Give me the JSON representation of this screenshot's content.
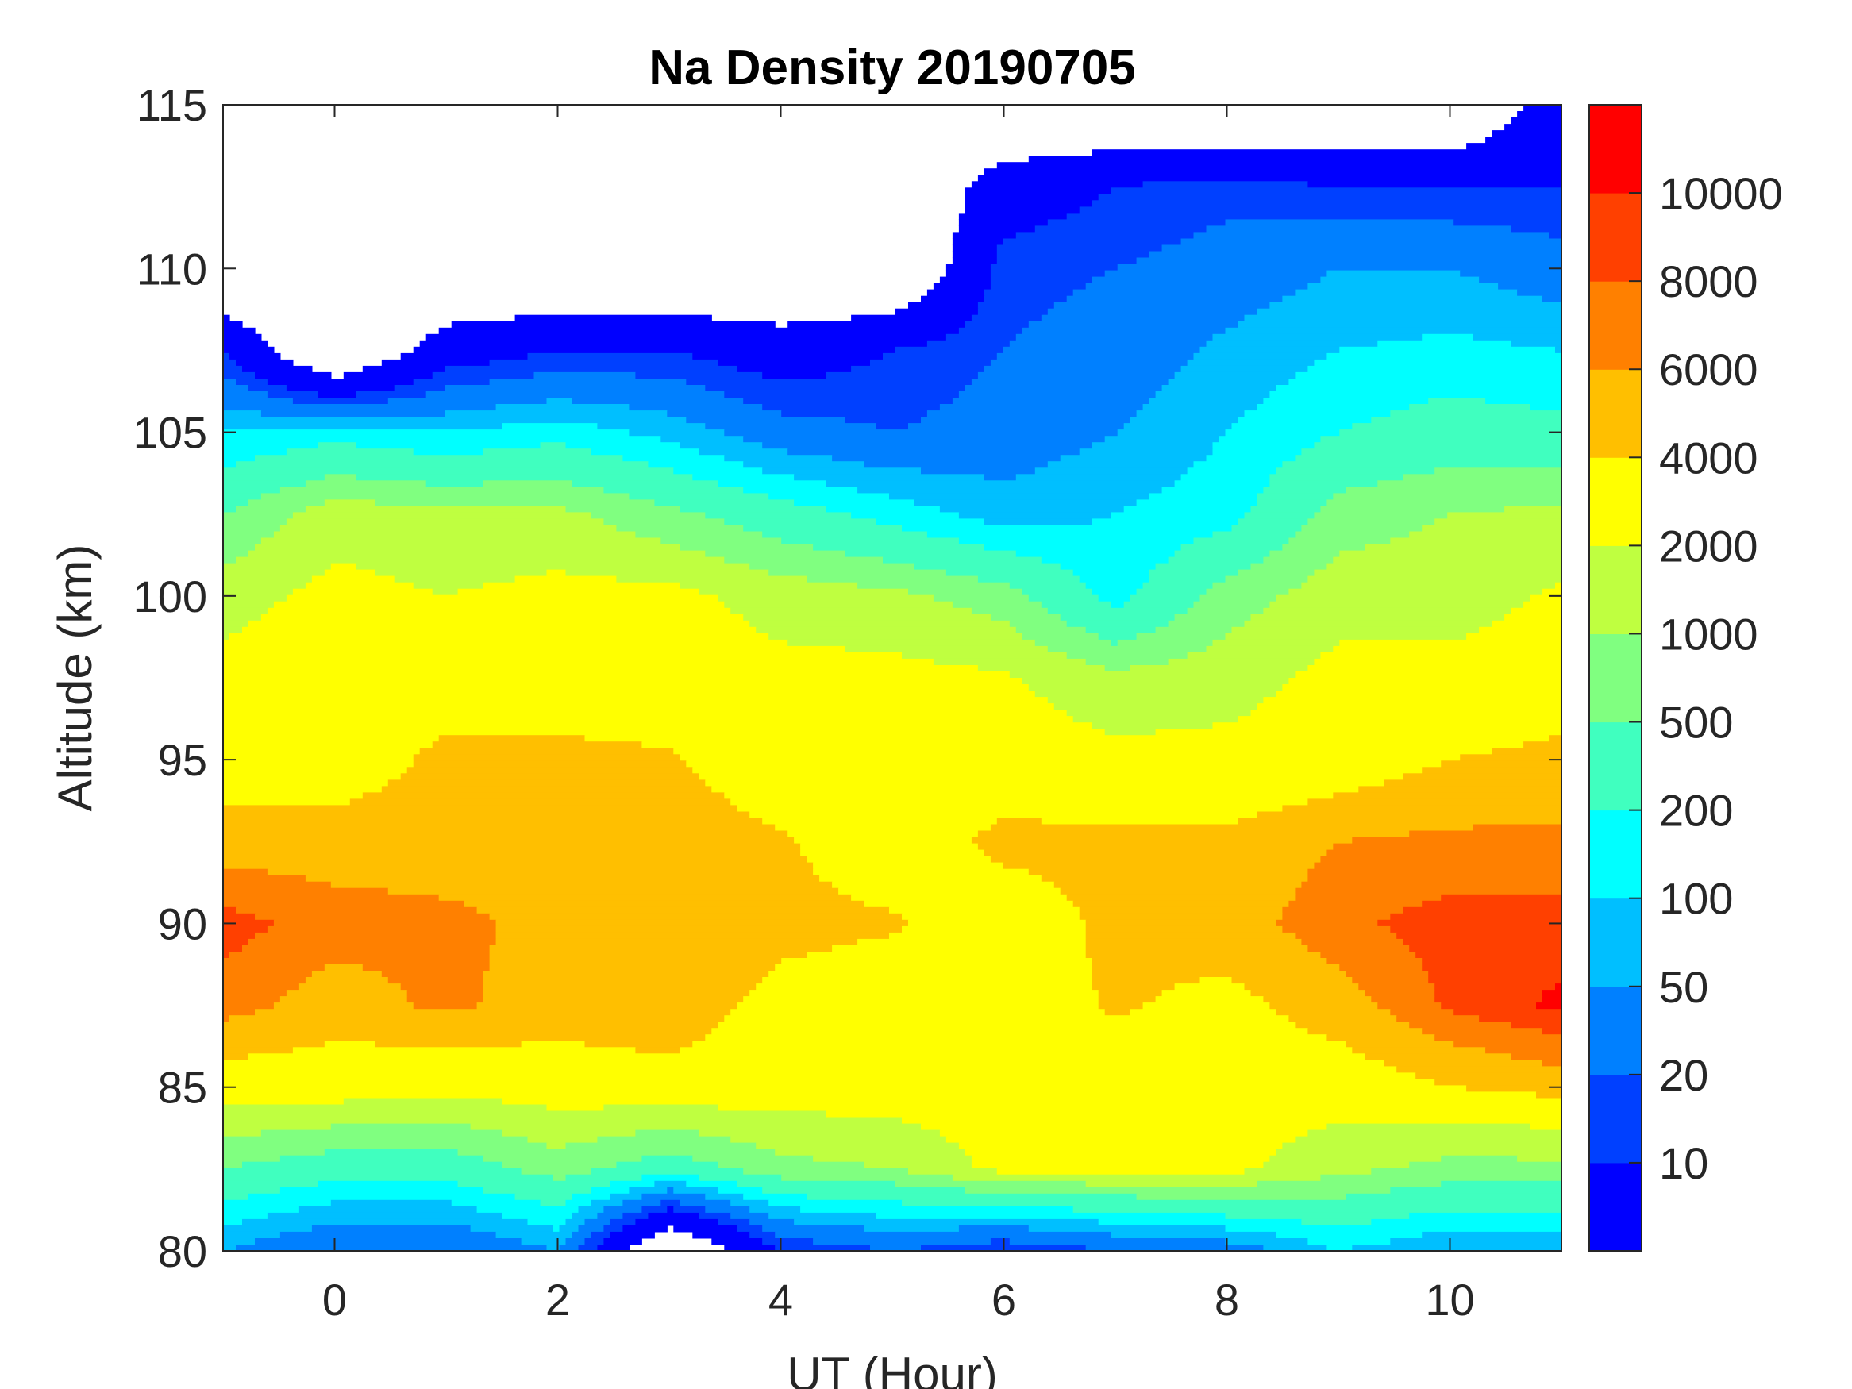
{
  "chart_data": {
    "type": "heatmap",
    "subtype": "filled-contour",
    "title": "Na Density 20190705",
    "xlabel": "UT (Hour)",
    "ylabel": "Altitude (km)",
    "xlim": [
      -1,
      11
    ],
    "ylim": [
      80,
      115
    ],
    "xticks": [
      "0",
      "2",
      "4",
      "6",
      "8",
      "10"
    ],
    "xtick_values": [
      0,
      2,
      4,
      6,
      8,
      10
    ],
    "yticks": [
      "80",
      "85",
      "90",
      "95",
      "100",
      "105",
      "110",
      "115"
    ],
    "ytick_values": [
      80,
      85,
      90,
      95,
      100,
      105,
      110,
      115
    ],
    "colorbar": {
      "levels": [
        10,
        20,
        50,
        100,
        200,
        500,
        1000,
        2000,
        4000,
        6000,
        8000,
        10000
      ],
      "labels": [
        "10",
        "20",
        "50",
        "100",
        "200",
        "500",
        "1000",
        "2000",
        "4000",
        "6000",
        "8000",
        "10000"
      ],
      "colors": [
        "#0000FF",
        "#0040FF",
        "#0080FF",
        "#00BFFF",
        "#00FFFF",
        "#40FFBF",
        "#80FF80",
        "#BFFF40",
        "#FFFF00",
        "#FFBF00",
        "#FF8000",
        "#FF4000",
        "#FF0000"
      ]
    },
    "x": [
      -1,
      0,
      1,
      2,
      3,
      4,
      5,
      6,
      7,
      8,
      9,
      10,
      11
    ],
    "y": [
      80,
      82.5,
      85,
      87.5,
      90,
      92.5,
      95,
      97.5,
      100,
      102.5,
      105,
      107.5,
      110,
      112.5,
      115
    ],
    "z_columns": [
      [
        50,
        500,
        3000,
        7000,
        9000,
        5000,
        3000,
        2500,
        1500,
        500,
        100,
        10,
        null,
        null,
        null
      ],
      [
        20,
        300,
        3000,
        5000,
        7000,
        5000,
        3000,
        3500,
        2500,
        1500,
        150,
        null,
        null,
        null,
        null
      ],
      [
        20,
        300,
        2500,
        6500,
        6500,
        5000,
        4500,
        3000,
        2000,
        1200,
        100,
        5,
        null,
        null,
        null
      ],
      [
        50,
        700,
        3000,
        5000,
        5500,
        5000,
        4500,
        3000,
        2500,
        1200,
        150,
        10,
        null,
        null,
        null
      ],
      [
        null,
        300,
        3500,
        5000,
        5500,
        5000,
        4200,
        3000,
        2500,
        600,
        80,
        10,
        null,
        null,
        null
      ],
      [
        10,
        800,
        3000,
        3500,
        4500,
        4200,
        3000,
        2500,
        1500,
        300,
        30,
        5,
        null,
        null,
        null
      ],
      [
        20,
        1000,
        3000,
        3000,
        4200,
        3000,
        2500,
        2500,
        1200,
        150,
        20,
        10,
        null,
        null,
        null
      ],
      [
        10,
        2500,
        3000,
        3000,
        3000,
        4500,
        3000,
        2200,
        700,
        70,
        30,
        20,
        15,
        5,
        null
      ],
      [
        20,
        2500,
        3000,
        4200,
        4500,
        4500,
        2500,
        1200,
        150,
        100,
        50,
        30,
        20,
        10,
        null
      ],
      [
        30,
        2500,
        3000,
        3500,
        5000,
        4500,
        2500,
        1500,
        700,
        150,
        100,
        60,
        30,
        15,
        null
      ],
      [
        100,
        1200,
        3000,
        5000,
        7500,
        6000,
        3000,
        2500,
        1500,
        700,
        200,
        100,
        50,
        10,
        null
      ],
      [
        50,
        800,
        4000,
        8500,
        9000,
        6500,
        4000,
        2500,
        1500,
        1000,
        300,
        120,
        50,
        10,
        null
      ],
      [
        50,
        800,
        5000,
        10500,
        9000,
        6500,
        4500,
        3000,
        2200,
        1200,
        250,
        100,
        30,
        10,
        5
      ]
    ]
  }
}
